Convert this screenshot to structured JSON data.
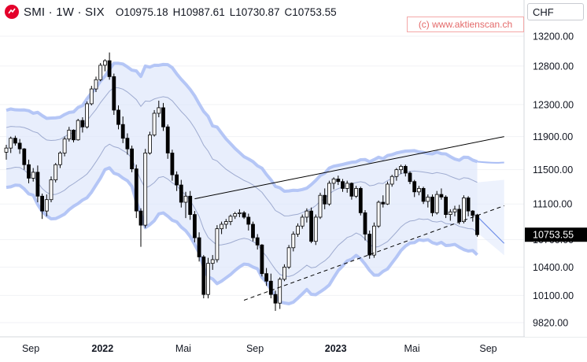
{
  "header": {
    "symbol": "SMI · 1W · SIX",
    "open_label": "O",
    "open": "10975.18",
    "high_label": "H",
    "high": "10987.61",
    "low_label": "L",
    "low": "10730.87",
    "close_label": "C",
    "close": "10753.55"
  },
  "watermark": "(c) www.aktienscan.ch",
  "currency": "CHF",
  "last_price_label": "10753.55",
  "colors": {
    "up": "#ffffff",
    "down": "#000000",
    "band_fill": "#dce5fb",
    "band_outer": "#a9bdf4",
    "band_inner": "#7f8fbd",
    "last_price_bg": "#000000"
  },
  "chart_data": {
    "type": "candlestick",
    "interval": "1W",
    "y_axis": {
      "ticks": [
        9820,
        10100,
        10400,
        10700,
        11100,
        11500,
        11900,
        12300,
        12800,
        13200
      ],
      "tick_labels": [
        "9820.00",
        "10100.00",
        "10400.00",
        "10700.00",
        "11100.00",
        "11500.00",
        "11900.00",
        "12300.00",
        "12800.00",
        "13200.00"
      ],
      "scale": "log",
      "ylim": [
        9700,
        13350
      ]
    },
    "x_axis": {
      "labels": [
        "Sep",
        "2022",
        "Mai",
        "Sep",
        "2023",
        "Mai",
        "Sep"
      ],
      "bold": [
        "2022",
        "2023"
      ]
    },
    "candles": [
      [
        11710,
        11800,
        11620,
        11760
      ],
      [
        11760,
        11900,
        11700,
        11880
      ],
      [
        11880,
        11910,
        11790,
        11820
      ],
      [
        11820,
        11870,
        11690,
        11750
      ],
      [
        11750,
        11760,
        11500,
        11560
      ],
      [
        11560,
        11620,
        11340,
        11400
      ],
      [
        11400,
        11520,
        11360,
        11470
      ],
      [
        11470,
        11550,
        11120,
        11190
      ],
      [
        11190,
        11220,
        10930,
        11020
      ],
      [
        11020,
        11210,
        10960,
        11150
      ],
      [
        11150,
        11420,
        11120,
        11380
      ],
      [
        11380,
        11580,
        11350,
        11560
      ],
      [
        11560,
        11720,
        11520,
        11700
      ],
      [
        11700,
        11900,
        11660,
        11870
      ],
      [
        11870,
        12020,
        11840,
        11980
      ],
      [
        11980,
        11990,
        11830,
        11860
      ],
      [
        11860,
        12120,
        11850,
        12100
      ],
      [
        12100,
        12140,
        11950,
        12020
      ],
      [
        12020,
        12340,
        12000,
        12310
      ],
      [
        12310,
        12540,
        12290,
        12500
      ],
      [
        12500,
        12660,
        12460,
        12620
      ],
      [
        12620,
        12840,
        12600,
        12810
      ],
      [
        12810,
        12890,
        12730,
        12870
      ],
      [
        12870,
        12980,
        12620,
        12660
      ],
      [
        12660,
        12700,
        12170,
        12230
      ],
      [
        12230,
        12290,
        11990,
        12050
      ],
      [
        12050,
        12150,
        11820,
        11880
      ],
      [
        11880,
        11940,
        11680,
        11750
      ],
      [
        11750,
        11790,
        11470,
        11510
      ],
      [
        11510,
        11560,
        10940,
        11020
      ],
      [
        11020,
        11050,
        10620,
        10860
      ],
      [
        10860,
        11750,
        10830,
        11700
      ],
      [
        11700,
        11960,
        11680,
        11920
      ],
      [
        11920,
        12230,
        11900,
        12190
      ],
      [
        12190,
        12350,
        12140,
        12260
      ],
      [
        12260,
        12320,
        11970,
        12020
      ],
      [
        12020,
        12050,
        11630,
        11700
      ],
      [
        11700,
        11740,
        11370,
        11440
      ],
      [
        11440,
        11480,
        11250,
        11320
      ],
      [
        11320,
        11380,
        11060,
        11120
      ],
      [
        11120,
        11240,
        10940,
        11190
      ],
      [
        11190,
        11250,
        10920,
        10980
      ],
      [
        10980,
        11020,
        10670,
        10720
      ],
      [
        10720,
        10780,
        10460,
        10510
      ],
      [
        10510,
        10530,
        10070,
        10110
      ],
      [
        10110,
        10500,
        10070,
        10440
      ],
      [
        10440,
        10530,
        10370,
        10480
      ],
      [
        10480,
        10860,
        10450,
        10820
      ],
      [
        10820,
        10900,
        10760,
        10870
      ],
      [
        10870,
        10930,
        10820,
        10900
      ],
      [
        10900,
        10980,
        10860,
        10960
      ],
      [
        10960,
        11010,
        10930,
        10990
      ],
      [
        10990,
        11040,
        10950,
        11000
      ],
      [
        11000,
        11020,
        10930,
        10950
      ],
      [
        10950,
        10990,
        10800,
        10870
      ],
      [
        10870,
        10900,
        10680,
        10720
      ],
      [
        10720,
        10760,
        10590,
        10640
      ],
      [
        10640,
        10650,
        10300,
        10330
      ],
      [
        10330,
        10390,
        10200,
        10250
      ],
      [
        10250,
        10330,
        10070,
        10110
      ],
      [
        10110,
        10150,
        9940,
        10020
      ],
      [
        10020,
        10290,
        9960,
        10270
      ],
      [
        10270,
        10430,
        10250,
        10400
      ],
      [
        10400,
        10640,
        10380,
        10610
      ],
      [
        10610,
        10790,
        10570,
        10760
      ],
      [
        10760,
        10880,
        10730,
        10850
      ],
      [
        10850,
        10980,
        10820,
        10950
      ],
      [
        10950,
        11050,
        10890,
        11020
      ],
      [
        11020,
        11060,
        10660,
        10680
      ],
      [
        10680,
        10980,
        10640,
        10950
      ],
      [
        10950,
        11230,
        10930,
        11200
      ],
      [
        11200,
        11280,
        11040,
        11100
      ],
      [
        11100,
        11370,
        11080,
        11340
      ],
      [
        11340,
        11410,
        11270,
        11390
      ],
      [
        11390,
        11430,
        11320,
        11360
      ],
      [
        11360,
        11390,
        11240,
        11280
      ],
      [
        11280,
        11370,
        11230,
        11340
      ],
      [
        11340,
        11350,
        11150,
        11190
      ],
      [
        11190,
        11310,
        11170,
        11280
      ],
      [
        11280,
        11300,
        10970,
        11000
      ],
      [
        11000,
        11030,
        10690,
        10760
      ],
      [
        10760,
        10800,
        10490,
        10530
      ],
      [
        10530,
        10890,
        10500,
        10850
      ],
      [
        10850,
        11140,
        10830,
        11120
      ],
      [
        11120,
        11200,
        11060,
        11100
      ],
      [
        11100,
        11360,
        11090,
        11330
      ],
      [
        11330,
        11440,
        11300,
        11420
      ],
      [
        11420,
        11520,
        11370,
        11500
      ],
      [
        11500,
        11560,
        11450,
        11540
      ],
      [
        11540,
        11560,
        11420,
        11460
      ],
      [
        11460,
        11480,
        11330,
        11360
      ],
      [
        11360,
        11380,
        11180,
        11240
      ],
      [
        11240,
        11310,
        11200,
        11280
      ],
      [
        11280,
        11300,
        11100,
        11130
      ],
      [
        11130,
        11210,
        11060,
        11180
      ],
      [
        11180,
        11210,
        10960,
        11000
      ],
      [
        11000,
        11250,
        10980,
        11210
      ],
      [
        11210,
        11280,
        11150,
        11180
      ],
      [
        11180,
        11200,
        10940,
        10980
      ],
      [
        10980,
        11040,
        10910,
        11010
      ],
      [
        11010,
        11080,
        10960,
        11040
      ],
      [
        11040,
        11090,
        10870,
        10900
      ],
      [
        10900,
        11200,
        10880,
        11170
      ],
      [
        11170,
        11190,
        10960,
        11020
      ],
      [
        11020,
        11030,
        10900,
        10970
      ],
      [
        10975.18,
        10987.61,
        10730.87,
        10753.55
      ]
    ],
    "trendlines": [
      {
        "style": "solid",
        "from": [
          42,
          11160
        ],
        "to": [
          111,
          11900
        ]
      },
      {
        "style": "dashed",
        "from": [
          53,
          10050
        ],
        "to": [
          111,
          11080
        ]
      }
    ],
    "bands": {
      "type": "keltner",
      "extends_forward_weeks": 6
    }
  }
}
